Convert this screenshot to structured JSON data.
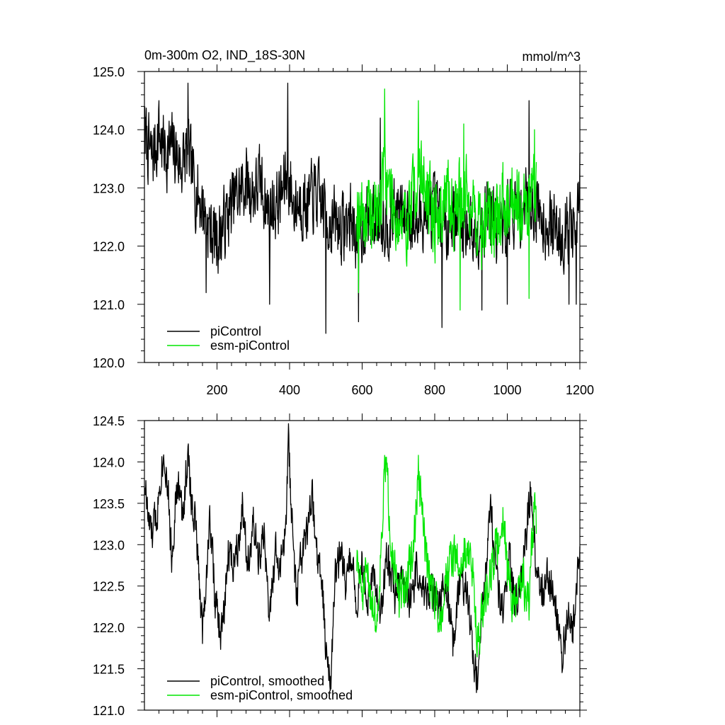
{
  "header": {
    "title": "0m-300m O2, IND_18S-30N",
    "units": "mmol/m^3"
  },
  "colors": {
    "series_a": "#000000",
    "series_b": "#00e600",
    "axis": "#000000"
  },
  "chart_data": [
    {
      "type": "line",
      "title": "0m-300m O2, IND_18S-30N",
      "units_label": "mmol/m^3",
      "xlim": [
        0,
        1200
      ],
      "ylim": [
        120.0,
        125.0
      ],
      "xticks": [
        200,
        400,
        600,
        800,
        1000,
        1200
      ],
      "xtick_labels": [
        "200",
        "400",
        "600",
        "800",
        "1000",
        "1200"
      ],
      "yticks": [
        120.0,
        121.0,
        122.0,
        123.0,
        124.0,
        125.0
      ],
      "ytick_labels": [
        "120.0",
        "121.0",
        "122.0",
        "123.0",
        "124.0",
        "125.0"
      ],
      "grid": false,
      "legend_position": "bottom-left",
      "series": [
        {
          "name": "piControl",
          "color": "#000000",
          "x_start": 1,
          "x_end": 1200,
          "anchors": [
            [
              1,
              123.9
            ],
            [
              20,
              123.5
            ],
            [
              40,
              123.9
            ],
            [
              60,
              123.6
            ],
            [
              80,
              123.7
            ],
            [
              100,
              123.4
            ],
            [
              120,
              123.6
            ],
            [
              140,
              123.0
            ],
            [
              160,
              122.7
            ],
            [
              180,
              122.3
            ],
            [
              200,
              122.1
            ],
            [
              220,
              122.4
            ],
            [
              240,
              122.7
            ],
            [
              260,
              122.9
            ],
            [
              280,
              123.1
            ],
            [
              300,
              122.9
            ],
            [
              320,
              123.1
            ],
            [
              340,
              122.6
            ],
            [
              360,
              122.7
            ],
            [
              380,
              122.9
            ],
            [
              395,
              123.3
            ],
            [
              410,
              122.7
            ],
            [
              430,
              122.8
            ],
            [
              450,
              122.7
            ],
            [
              470,
              122.9
            ],
            [
              490,
              122.7
            ],
            [
              510,
              122.4
            ],
            [
              530,
              122.4
            ],
            [
              550,
              122.3
            ],
            [
              570,
              122.5
            ],
            [
              590,
              122.1
            ],
            [
              610,
              122.5
            ],
            [
              630,
              122.4
            ],
            [
              650,
              122.6
            ],
            [
              670,
              122.4
            ],
            [
              690,
              122.6
            ],
            [
              710,
              122.5
            ],
            [
              730,
              122.6
            ],
            [
              750,
              122.3
            ],
            [
              770,
              122.6
            ],
            [
              790,
              122.6
            ],
            [
              810,
              122.5
            ],
            [
              830,
              122.4
            ],
            [
              850,
              122.6
            ],
            [
              870,
              122.4
            ],
            [
              890,
              122.4
            ],
            [
              910,
              122.2
            ],
            [
              930,
              122.5
            ],
            [
              950,
              122.7
            ],
            [
              970,
              122.3
            ],
            [
              990,
              122.3
            ],
            [
              1010,
              122.7
            ],
            [
              1030,
              122.5
            ],
            [
              1050,
              122.8
            ],
            [
              1070,
              122.8
            ],
            [
              1090,
              122.6
            ],
            [
              1110,
              122.4
            ],
            [
              1130,
              122.3
            ],
            [
              1150,
              122.2
            ],
            [
              1170,
              122.4
            ],
            [
              1190,
              122.1
            ],
            [
              1200,
              122.9
            ]
          ],
          "noise_amplitude": 0.55,
          "seed": 7,
          "spikes": [
            [
              1,
              124.4
            ],
            [
              40,
              124.5
            ],
            [
              120,
              124.8
            ],
            [
              170,
              121.2
            ],
            [
              345,
              121.0
            ],
            [
              395,
              124.8
            ],
            [
              500,
              120.5
            ],
            [
              590,
              120.7
            ],
            [
              650,
              124.2
            ],
            [
              820,
              120.6
            ],
            [
              930,
              120.9
            ],
            [
              1000,
              121.0
            ],
            [
              1060,
              124.5
            ],
            [
              1170,
              121.0
            ],
            [
              1190,
              121.0
            ],
            [
              1200,
              123.6
            ]
          ]
        },
        {
          "name": "esm-piControl",
          "color": "#00e600",
          "x_start": 585,
          "x_end": 1080,
          "anchors": [
            [
              585,
              122.8
            ],
            [
              610,
              122.5
            ],
            [
              630,
              122.5
            ],
            [
              650,
              122.7
            ],
            [
              660,
              123.4
            ],
            [
              680,
              122.9
            ],
            [
              700,
              122.4
            ],
            [
              720,
              122.3
            ],
            [
              740,
              122.9
            ],
            [
              755,
              123.3
            ],
            [
              770,
              123.1
            ],
            [
              790,
              122.6
            ],
            [
              810,
              122.4
            ],
            [
              830,
              122.9
            ],
            [
              850,
              122.6
            ],
            [
              870,
              122.9
            ],
            [
              890,
              122.9
            ],
            [
              910,
              122.6
            ],
            [
              930,
              122.2
            ],
            [
              950,
              122.6
            ],
            [
              970,
              122.3
            ],
            [
              990,
              122.8
            ],
            [
              1010,
              122.9
            ],
            [
              1030,
              122.9
            ],
            [
              1050,
              122.6
            ],
            [
              1070,
              123.0
            ],
            [
              1080,
              123.0
            ]
          ],
          "noise_amplitude": 0.6,
          "seed": 19,
          "spikes": [
            [
              590,
              121.2
            ],
            [
              662,
              124.7
            ],
            [
              755,
              124.5
            ],
            [
              870,
              120.9
            ],
            [
              880,
              124.1
            ],
            [
              1060,
              121.1
            ],
            [
              1075,
              124.0
            ]
          ]
        }
      ]
    },
    {
      "type": "line",
      "xlim": [
        0,
        1200
      ],
      "ylim": [
        121.0,
        124.5
      ],
      "xticks": [
        200,
        400,
        600,
        800,
        1000,
        1200
      ],
      "yticks": [
        121.0,
        121.5,
        122.0,
        122.5,
        123.0,
        123.5,
        124.0,
        124.5
      ],
      "ytick_labels": [
        "121.0",
        "121.5",
        "122.0",
        "122.5",
        "123.0",
        "123.5",
        "124.0",
        "124.5"
      ],
      "grid": false,
      "legend_position": "bottom-left",
      "series": [
        {
          "name": "piControl, smoothed",
          "color": "#000000",
          "x_start": 1,
          "x_end": 1200,
          "anchors": [
            [
              1,
              123.8
            ],
            [
              10,
              123.3
            ],
            [
              20,
              123.1
            ],
            [
              35,
              123.4
            ],
            [
              45,
              123.9
            ],
            [
              55,
              124.1
            ],
            [
              65,
              123.7
            ],
            [
              75,
              122.8
            ],
            [
              85,
              123.5
            ],
            [
              95,
              123.7
            ],
            [
              105,
              123.3
            ],
            [
              115,
              123.9
            ],
            [
              120,
              124.05
            ],
            [
              130,
              123.5
            ],
            [
              140,
              123.3
            ],
            [
              150,
              122.6
            ],
            [
              160,
              122.0
            ],
            [
              170,
              122.6
            ],
            [
              180,
              123.3
            ],
            [
              185,
              123.1
            ],
            [
              195,
              122.3
            ],
            [
              210,
              121.9
            ],
            [
              220,
              122.2
            ],
            [
              230,
              122.9
            ],
            [
              245,
              122.8
            ],
            [
              260,
              123.1
            ],
            [
              270,
              123.5
            ],
            [
              285,
              122.8
            ],
            [
              300,
              123.2
            ],
            [
              315,
              122.8
            ],
            [
              330,
              123.1
            ],
            [
              345,
              122.1
            ],
            [
              360,
              122.9
            ],
            [
              375,
              122.7
            ],
            [
              390,
              123.2
            ],
            [
              397,
              124.25
            ],
            [
              410,
              122.9
            ],
            [
              420,
              122.4
            ],
            [
              435,
              122.9
            ],
            [
              450,
              123.1
            ],
            [
              462,
              123.6
            ],
            [
              475,
              122.9
            ],
            [
              490,
              122.5
            ],
            [
              500,
              121.7
            ],
            [
              515,
              121.5
            ],
            [
              525,
              122.6
            ],
            [
              540,
              122.9
            ],
            [
              555,
              122.5
            ],
            [
              570,
              122.9
            ],
            [
              585,
              122.3
            ],
            [
              600,
              122.8
            ],
            [
              615,
              122.2
            ],
            [
              630,
              122.6
            ],
            [
              650,
              122.2
            ],
            [
              670,
              122.9
            ],
            [
              690,
              122.4
            ],
            [
              710,
              122.6
            ],
            [
              730,
              122.3
            ],
            [
              750,
              122.7
            ],
            [
              770,
              122.4
            ],
            [
              790,
              122.5
            ],
            [
              810,
              122.2
            ],
            [
              830,
              122.6
            ],
            [
              850,
              121.8
            ],
            [
              870,
              122.5
            ],
            [
              890,
              122.5
            ],
            [
              905,
              121.7
            ],
            [
              920,
              121.3
            ],
            [
              935,
              122.5
            ],
            [
              955,
              123.4
            ],
            [
              975,
              122.4
            ],
            [
              990,
              122.1
            ],
            [
              1005,
              122.9
            ],
            [
              1020,
              122.3
            ],
            [
              1040,
              122.6
            ],
            [
              1055,
              123.3
            ],
            [
              1065,
              123.8
            ],
            [
              1080,
              122.7
            ],
            [
              1095,
              122.5
            ],
            [
              1115,
              122.6
            ],
            [
              1135,
              122.3
            ],
            [
              1150,
              121.5
            ],
            [
              1165,
              122.2
            ],
            [
              1180,
              121.9
            ],
            [
              1190,
              122.5
            ],
            [
              1200,
              123.1
            ]
          ],
          "noise_amplitude": 0.22,
          "seed": 33,
          "spikes": []
        },
        {
          "name": "esm-piControl, smoothed",
          "color": "#00e600",
          "x_start": 585,
          "x_end": 1080,
          "anchors": [
            [
              585,
              122.8
            ],
            [
              600,
              122.4
            ],
            [
              615,
              122.6
            ],
            [
              630,
              122.3
            ],
            [
              640,
              122.0
            ],
            [
              650,
              122.8
            ],
            [
              660,
              123.7
            ],
            [
              665,
              124.0
            ],
            [
              680,
              123.1
            ],
            [
              700,
              122.3
            ],
            [
              720,
              122.5
            ],
            [
              740,
              122.9
            ],
            [
              750,
              123.5
            ],
            [
              755,
              123.85
            ],
            [
              765,
              123.4
            ],
            [
              780,
              122.7
            ],
            [
              800,
              122.4
            ],
            [
              815,
              122.1
            ],
            [
              830,
              122.6
            ],
            [
              850,
              122.9
            ],
            [
              870,
              122.7
            ],
            [
              890,
              123.0
            ],
            [
              905,
              122.6
            ],
            [
              920,
              121.8
            ],
            [
              940,
              122.4
            ],
            [
              960,
              122.8
            ],
            [
              980,
              123.1
            ],
            [
              990,
              123.4
            ],
            [
              1000,
              122.7
            ],
            [
              1020,
              122.2
            ],
            [
              1040,
              122.6
            ],
            [
              1060,
              122.3
            ],
            [
              1070,
              123.2
            ],
            [
              1075,
              123.5
            ],
            [
              1080,
              123.3
            ]
          ],
          "noise_amplitude": 0.25,
          "seed": 51,
          "spikes": []
        }
      ]
    }
  ]
}
